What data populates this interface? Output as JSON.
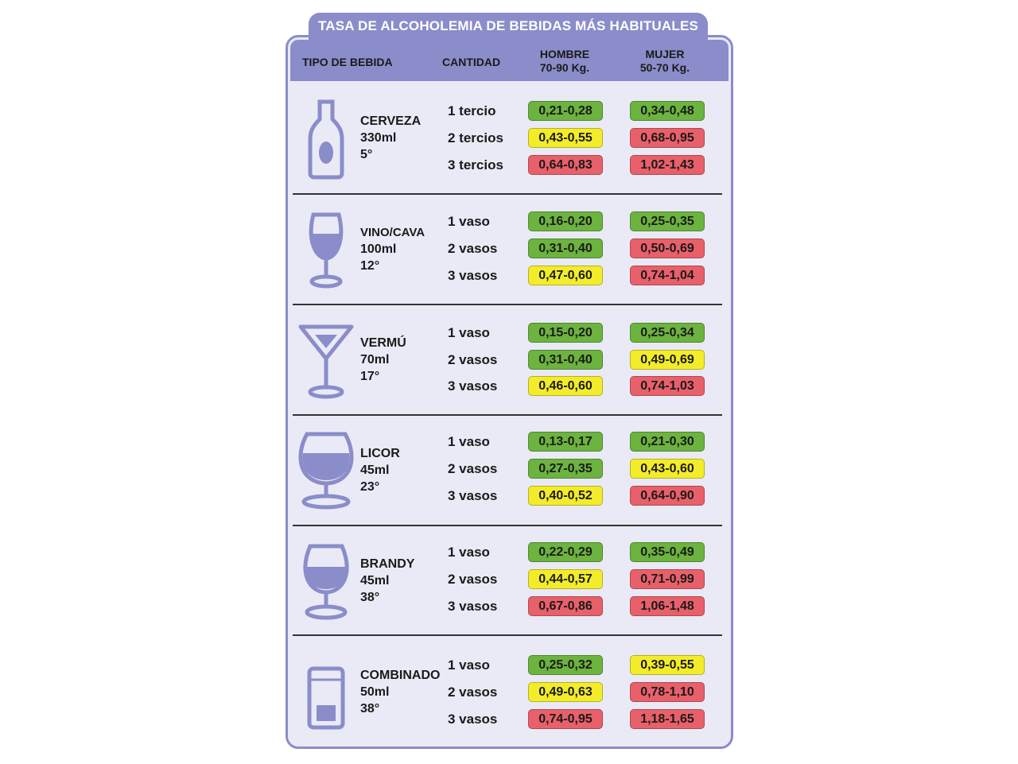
{
  "title": "TASA DE ALCOHOLEMIA DE BEBIDAS MÁS HABITUALES",
  "headers": {
    "tipo": "TIPO DE BEBIDA",
    "cantidad": "CANTIDAD",
    "hombre_line1": "HOMBRE",
    "hombre_line2": "70-90 Kg.",
    "mujer_line1": "MUJER",
    "mujer_line2": "50-70 Kg."
  },
  "colors": {
    "green": "#6cb33f",
    "yellow": "#f3ec2a",
    "red": "#e8606a",
    "accent": "#8a8dc9",
    "panel": "#e9eaf6"
  },
  "drinks": [
    {
      "name": "CERVEZA",
      "volume": "330ml",
      "degrees": "5°",
      "icon": "beer-bottle-icon",
      "rows": [
        {
          "qty": "1 tercio",
          "hombre": "0,21-0,28",
          "hombre_level": "g",
          "mujer": "0,34-0,48",
          "mujer_level": "g"
        },
        {
          "qty": "2 tercios",
          "hombre": "0,43-0,55",
          "hombre_level": "y",
          "mujer": "0,68-0,95",
          "mujer_level": "r"
        },
        {
          "qty": "3 tercios",
          "hombre": "0,64-0,83",
          "hombre_level": "r",
          "mujer": "1,02-1,43",
          "mujer_level": "r"
        }
      ]
    },
    {
      "name": "VINO/CAVA",
      "volume": "100ml",
      "degrees": "12°",
      "icon": "wine-glass-icon",
      "rows": [
        {
          "qty": "1 vaso",
          "hombre": "0,16-0,20",
          "hombre_level": "g",
          "mujer": "0,25-0,35",
          "mujer_level": "g"
        },
        {
          "qty": "2 vasos",
          "hombre": "0,31-0,40",
          "hombre_level": "g",
          "mujer": "0,50-0,69",
          "mujer_level": "r"
        },
        {
          "qty": "3 vasos",
          "hombre": "0,47-0,60",
          "hombre_level": "y",
          "mujer": "0,74-1,04",
          "mujer_level": "r"
        }
      ]
    },
    {
      "name": "VERMÚ",
      "volume": "70ml",
      "degrees": "17°",
      "icon": "martini-glass-icon",
      "rows": [
        {
          "qty": "1 vaso",
          "hombre": "0,15-0,20",
          "hombre_level": "g",
          "mujer": "0,25-0,34",
          "mujer_level": "g"
        },
        {
          "qty": "2 vasos",
          "hombre": "0,31-0,40",
          "hombre_level": "g",
          "mujer": "0,49-0,69",
          "mujer_level": "y"
        },
        {
          "qty": "3 vasos",
          "hombre": "0,46-0,60",
          "hombre_level": "y",
          "mujer": "0,74-1,03",
          "mujer_level": "r"
        }
      ]
    },
    {
      "name": "LICOR",
      "volume": "45ml",
      "degrees": "23°",
      "icon": "liqueur-glass-icon",
      "rows": [
        {
          "qty": "1 vaso",
          "hombre": "0,13-0,17",
          "hombre_level": "g",
          "mujer": "0,21-0,30",
          "mujer_level": "g"
        },
        {
          "qty": "2 vasos",
          "hombre": "0,27-0,35",
          "hombre_level": "g",
          "mujer": "0,43-0,60",
          "mujer_level": "y"
        },
        {
          "qty": "3 vasos",
          "hombre": "0,40-0,52",
          "hombre_level": "y",
          "mujer": "0,64-0,90",
          "mujer_level": "r"
        }
      ]
    },
    {
      "name": "BRANDY",
      "volume": "45ml",
      "degrees": "38°",
      "icon": "brandy-snifter-icon",
      "rows": [
        {
          "qty": "1 vaso",
          "hombre": "0,22-0,29",
          "hombre_level": "g",
          "mujer": "0,35-0,49",
          "mujer_level": "g"
        },
        {
          "qty": "2 vasos",
          "hombre": "0,44-0,57",
          "hombre_level": "y",
          "mujer": "0,71-0,99",
          "mujer_level": "r"
        },
        {
          "qty": "3 vasos",
          "hombre": "0,67-0,86",
          "hombre_level": "r",
          "mujer": "1,06-1,48",
          "mujer_level": "r"
        }
      ]
    },
    {
      "name": "COMBINADO",
      "volume": "50ml",
      "degrees": "38°",
      "icon": "highball-glass-icon",
      "rows": [
        {
          "qty": "1 vaso",
          "hombre": "0,25-0,32",
          "hombre_level": "g",
          "mujer": "0,39-0,55",
          "mujer_level": "y"
        },
        {
          "qty": "2 vasos",
          "hombre": "0,49-0,63",
          "hombre_level": "y",
          "mujer": "0,78-1,10",
          "mujer_level": "r"
        },
        {
          "qty": "3 vasos",
          "hombre": "0,74-0,95",
          "hombre_level": "r",
          "mujer": "1,18-1,65",
          "mujer_level": "r"
        }
      ]
    }
  ]
}
